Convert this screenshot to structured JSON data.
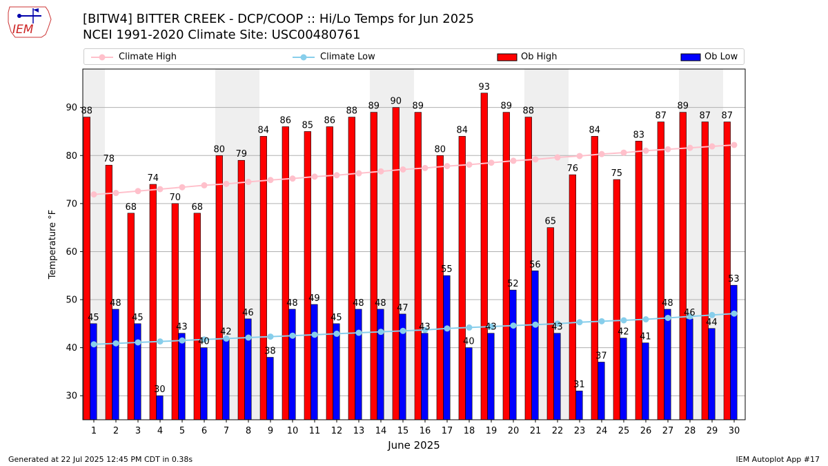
{
  "logo": {
    "text": "IEM"
  },
  "title_line1": "[BITW4] BITTER CREEK - DCP/COOP :: Hi/Lo Temps for Jun 2025",
  "title_line2": "NCEI 1991-2020 Climate Site: USC00480761",
  "footer": {
    "left": "Generated at 22 Jul 2025 12:45 PM CDT in 0.38s",
    "right": "IEM Autoplot App #17"
  },
  "legend": [
    {
      "label": "Climate High",
      "kind": "line",
      "color": "#ffc0cb"
    },
    {
      "label": "Climate Low",
      "kind": "line",
      "color": "#87ceeb"
    },
    {
      "label": "Ob High",
      "kind": "bar",
      "color": "#ff0000"
    },
    {
      "label": "Ob Low",
      "kind": "bar",
      "color": "#0000ff"
    }
  ],
  "chart_data": {
    "type": "bar",
    "xlabel": "June 2025",
    "ylabel": "Temperature °F",
    "ylim": [
      25,
      98
    ],
    "yticks": [
      30,
      40,
      50,
      60,
      70,
      80,
      90
    ],
    "grid": true,
    "legend_position": "top",
    "weekend_shading_days": [
      1,
      7,
      8,
      14,
      15,
      21,
      22,
      28,
      29
    ],
    "categories": [
      "1",
      "2",
      "3",
      "4",
      "5",
      "6",
      "7",
      "8",
      "9",
      "10",
      "11",
      "12",
      "13",
      "14",
      "15",
      "16",
      "17",
      "18",
      "19",
      "20",
      "21",
      "22",
      "23",
      "24",
      "25",
      "26",
      "27",
      "28",
      "29",
      "30"
    ],
    "series": [
      {
        "name": "Ob High",
        "kind": "bar",
        "color": "#ff0000",
        "values": [
          88,
          78,
          68,
          74,
          70,
          68,
          80,
          79,
          84,
          86,
          85,
          86,
          88,
          89,
          90,
          89,
          80,
          84,
          93,
          89,
          88,
          65,
          76,
          84,
          75,
          83,
          87,
          89,
          87,
          87
        ]
      },
      {
        "name": "Ob Low",
        "kind": "bar",
        "color": "#0000ff",
        "values": [
          45,
          48,
          45,
          30,
          43,
          40,
          42,
          46,
          38,
          48,
          49,
          45,
          48,
          48,
          47,
          43,
          55,
          40,
          43,
          52,
          56,
          43,
          31,
          37,
          42,
          41,
          48,
          46,
          44,
          53
        ]
      },
      {
        "name": "Climate High",
        "kind": "line",
        "color": "#ffc0cb",
        "values": [
          71.9,
          72.2,
          72.6,
          73.0,
          73.4,
          73.8,
          74.1,
          74.5,
          74.9,
          75.2,
          75.6,
          75.9,
          76.3,
          76.7,
          77.1,
          77.4,
          77.8,
          78.1,
          78.5,
          78.9,
          79.2,
          79.6,
          79.9,
          80.3,
          80.6,
          81.0,
          81.3,
          81.6,
          81.9,
          82.2
        ]
      },
      {
        "name": "Climate Low",
        "kind": "line",
        "color": "#87ceeb",
        "values": [
          40.7,
          40.9,
          41.1,
          41.3,
          41.5,
          41.7,
          41.9,
          42.1,
          42.3,
          42.5,
          42.7,
          42.9,
          43.1,
          43.3,
          43.5,
          43.7,
          44.0,
          44.2,
          44.4,
          44.6,
          44.8,
          45.0,
          45.3,
          45.5,
          45.7,
          45.9,
          46.2,
          46.5,
          46.8,
          47.1
        ]
      }
    ]
  }
}
